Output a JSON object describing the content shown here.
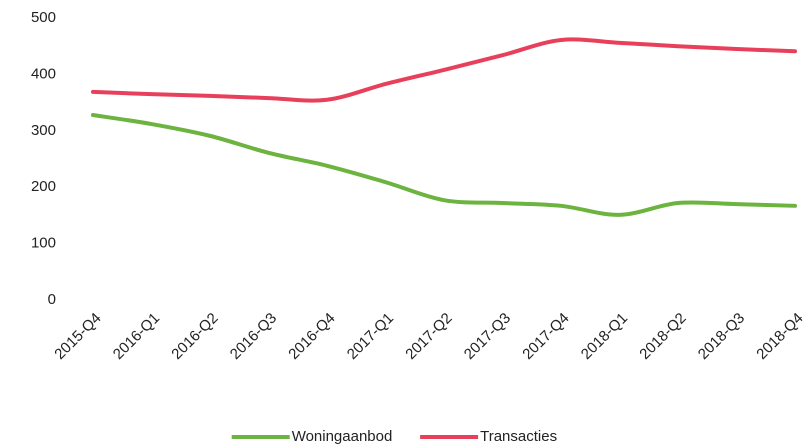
{
  "chart_data": {
    "type": "line",
    "categories": [
      "2015-Q4",
      "2016-Q1",
      "2016-Q2",
      "2016-Q3",
      "2016-Q4",
      "2017-Q1",
      "2017-Q2",
      "2017-Q3",
      "2017-Q4",
      "2018-Q1",
      "2018-Q2",
      "2018-Q3",
      "2018-Q4"
    ],
    "series": [
      {
        "name": "Woningaanbod",
        "color": "#6cb33f",
        "values": [
          328,
          312,
          291,
          261,
          238,
          209,
          177,
          172,
          167,
          151,
          172,
          170,
          167
        ]
      },
      {
        "name": "Transacties",
        "color": "#e8405a",
        "values": [
          369,
          365,
          362,
          358,
          355,
          383,
          408,
          434,
          461,
          456,
          450,
          445,
          441
        ]
      }
    ],
    "ylim": [
      0,
      500
    ],
    "yticks": [
      0,
      100,
      200,
      300,
      400,
      500
    ],
    "grid": false,
    "smooth": true,
    "legend": "bottom"
  }
}
